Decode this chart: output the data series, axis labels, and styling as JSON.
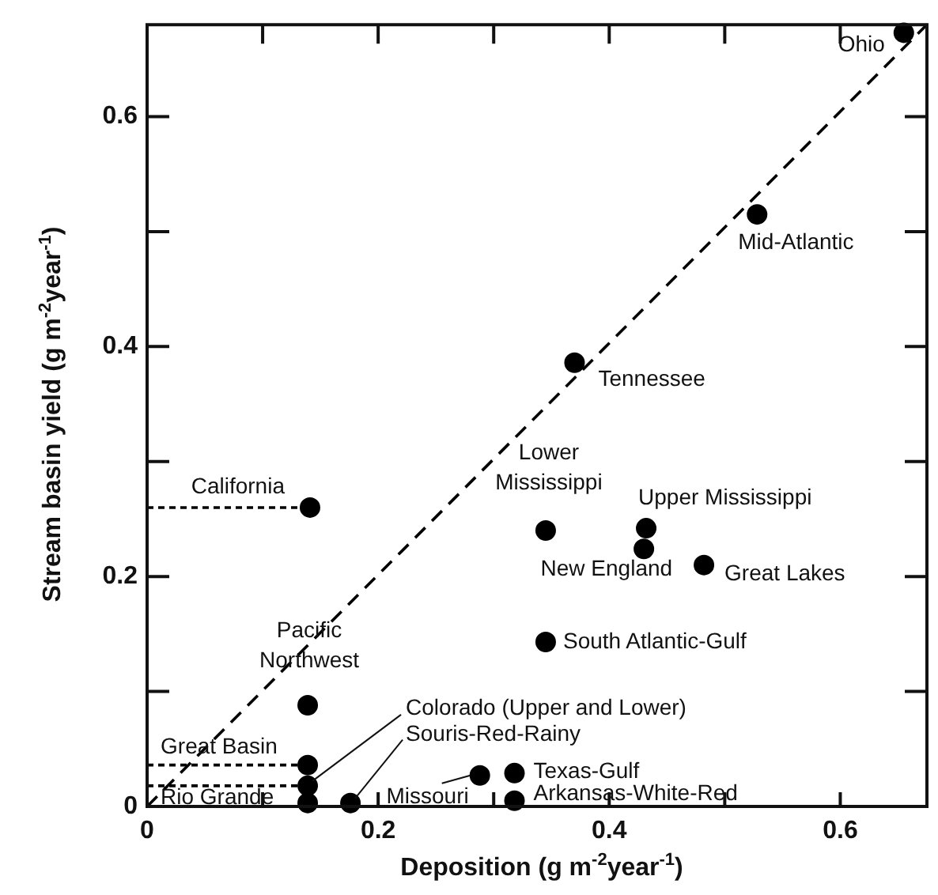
{
  "chart_data": {
    "type": "scatter",
    "xlabel": "Deposition (g m$^{-2}$year$^{-1}$)",
    "ylabel": "Stream basin yield (g m$^{-2}$year$^{-1}$)",
    "xlim": [
      0,
      0.675
    ],
    "ylim": [
      0,
      0.68
    ],
    "xticks": [
      0,
      {
        "value": 0.1,
        "label": null
      },
      0.2,
      {
        "value": 0.3,
        "label": null
      },
      0.4,
      {
        "value": 0.5,
        "label": null
      },
      0.6
    ],
    "yticks": [
      0,
      {
        "value": 0.1,
        "label": null
      },
      0.2,
      {
        "value": 0.3,
        "label": null
      },
      0.4,
      {
        "value": 0.5,
        "label": null
      },
      0.6
    ],
    "grid": false,
    "legend": false,
    "marker": "circle",
    "series": [
      {
        "color": "#000000",
        "x": [
          0.655,
          0.528,
          0.37,
          0.141,
          0.345,
          0.432,
          0.43,
          0.482,
          0.345,
          0.139,
          0.139,
          0.139,
          0.139,
          0.176,
          0.288,
          0.318,
          0.318
        ],
        "values": [
          0.673,
          0.515,
          0.386,
          0.26,
          0.24,
          0.242,
          0.224,
          0.21,
          0.143,
          0.088,
          0.036,
          0.018,
          0.003,
          0.003,
          0.027,
          0.029,
          0.005
        ]
      },
      {
        "type": "line",
        "color": "#000000",
        "line_style": "dashed",
        "marker": "none",
        "x": [
          0,
          0.675
        ],
        "values": [
          0,
          0.68
        ]
      },
      {
        "type": "line",
        "color": "#000000",
        "line_style": "dotted",
        "marker": "none",
        "x": [
          0,
          0.141
        ],
        "values": [
          0.26,
          0.26
        ]
      },
      {
        "type": "line",
        "color": "#000000",
        "line_style": "dotted",
        "marker": "none",
        "x": [
          0,
          0.139
        ],
        "values": [
          0.036,
          0.036
        ]
      },
      {
        "type": "line",
        "color": "#000000",
        "line_style": "dotted",
        "marker": "none",
        "x": [
          0,
          0.139
        ],
        "values": [
          0.018,
          0.018
        ]
      }
    ],
    "annotations": [
      {
        "text": "Ohio",
        "x": 0.655,
        "y": 0.673
      },
      {
        "text": "Mid-Atlantic",
        "x": 0.528,
        "y": 0.515
      },
      {
        "text": "Tennessee",
        "x": 0.37,
        "y": 0.386
      },
      {
        "text": "California",
        "x": 0.141,
        "y": 0.26
      },
      {
        "text": "Lower Mississippi",
        "x": 0.345,
        "y": 0.24
      },
      {
        "text": "Upper Mississippi",
        "x": 0.432,
        "y": 0.242
      },
      {
        "text": "New England",
        "x": 0.43,
        "y": 0.224
      },
      {
        "text": "Great Lakes",
        "x": 0.482,
        "y": 0.21
      },
      {
        "text": "South Atlantic-Gulf",
        "x": 0.345,
        "y": 0.143
      },
      {
        "text": "Pacific Northwest",
        "x": 0.139,
        "y": 0.088
      },
      {
        "text": "Great Basin",
        "x": 0.139,
        "y": 0.036
      },
      {
        "text": "Colorado (Upper and Lower)",
        "x": 0.139,
        "y": 0.018
      },
      {
        "text": "Rio Grande",
        "x": 0.139,
        "y": 0.003
      },
      {
        "text": "Souris-Red-Rainy",
        "x": 0.176,
        "y": 0.003
      },
      {
        "text": "Missouri",
        "x": 0.288,
        "y": 0.027
      },
      {
        "text": "Texas-Gulf",
        "x": 0.318,
        "y": 0.029
      },
      {
        "text": "Arkansas-White-Red",
        "x": 0.318,
        "y": 0.005
      }
    ]
  }
}
